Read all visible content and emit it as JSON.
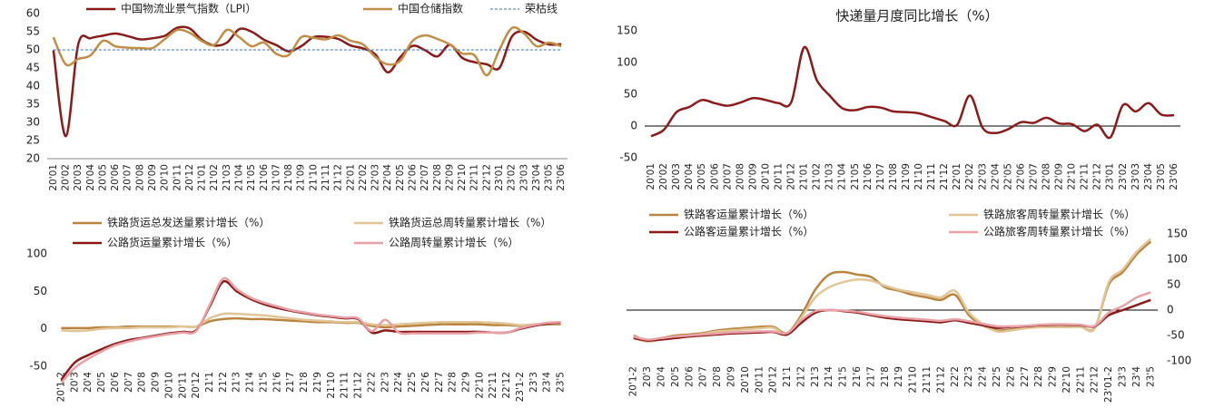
{
  "chart_data": [
    {
      "type": "line",
      "categories": [
        "20'01",
        "20'02",
        "20'03",
        "20'04",
        "20'05",
        "20'06",
        "20'07",
        "20'08",
        "20'09",
        "20'10",
        "20'11",
        "20'12",
        "21'01",
        "21'02",
        "21'03",
        "21'04",
        "21'05",
        "21'06",
        "21'07",
        "21'08",
        "21'09",
        "21'10",
        "21'11",
        "21'12",
        "22'01",
        "22'02",
        "22'03",
        "22'04",
        "22'05",
        "22'06",
        "22'07",
        "22'08",
        "22'09",
        "22'10",
        "22'11",
        "22'12",
        "23'01",
        "23'02",
        "23'03",
        "23'04",
        "23'05",
        "23'06"
      ],
      "ylim": [
        20,
        60
      ],
      "yticks": [
        20,
        25,
        30,
        35,
        40,
        45,
        50,
        55,
        60
      ],
      "series": [
        {
          "name": "中国物流业景气指数（LPI）",
          "color": "#8b1a1a",
          "values": [
            49.9,
            26.2,
            51.5,
            53.2,
            53.9,
            54.5,
            53.8,
            52.9,
            53.2,
            53.9,
            56.1,
            55.9,
            52.7,
            51.2,
            52.0,
            55.7,
            55.0,
            52.8,
            51.3,
            49.6,
            51.0,
            53.5,
            53.6,
            53.0,
            51.2,
            50.4,
            48.7,
            43.8,
            48.0,
            51.1,
            49.9,
            48.2,
            51.4,
            47.8,
            46.6,
            46.0,
            45.0,
            53.6,
            55.0,
            52.8,
            51.5,
            51.6
          ]
        },
        {
          "name": "中国仓储指数",
          "color": "#c08e45",
          "values": [
            53.5,
            46.0,
            47.5,
            48.5,
            52.5,
            51.0,
            50.6,
            50.5,
            50.5,
            53.0,
            55.5,
            54.7,
            52.4,
            51.4,
            55.5,
            53.5,
            51.0,
            52.0,
            48.9,
            48.6,
            53.5,
            53.3,
            52.9,
            54.0,
            52.5,
            51.5,
            48.0,
            46.0,
            47.0,
            52.5,
            54.0,
            53.0,
            51.5,
            49.0,
            48.5,
            43.0,
            50.0,
            56.0,
            54.5,
            51.0,
            52.0,
            51.0
          ]
        },
        {
          "name": "荣枯线",
          "color": "#3a6fb5",
          "line_style": "dashed",
          "values": [
            50,
            50,
            50,
            50,
            50,
            50,
            50,
            50,
            50,
            50,
            50,
            50,
            50,
            50,
            50,
            50,
            50,
            50,
            50,
            50,
            50,
            50,
            50,
            50,
            50,
            50,
            50,
            50,
            50,
            50,
            50,
            50,
            50,
            50,
            50,
            50,
            50,
            50,
            50,
            50,
            50,
            50
          ]
        }
      ]
    },
    {
      "type": "line",
      "title": "快递量月度同比增长（%）",
      "categories": [
        "20'01",
        "20'02",
        "20'03",
        "20'04",
        "20'05",
        "20'06",
        "20'07",
        "20'08",
        "20'09",
        "20'10",
        "20'11",
        "20'12",
        "21'01",
        "21'02",
        "21'03",
        "21'04",
        "21'05",
        "21'06",
        "21'07",
        "21'08",
        "21'09",
        "21'10",
        "21'11",
        "21'12",
        "22'01",
        "22'02",
        "22'03",
        "22'04",
        "22'05",
        "22'06",
        "22'07",
        "22'08",
        "22'09",
        "22'10",
        "22'11",
        "22'12",
        "23'01",
        "23'02",
        "23'03",
        "23'04",
        "23'05",
        "23'06"
      ],
      "ylim": [
        -50,
        150
      ],
      "yticks": [
        -50,
        0,
        50,
        100,
        150
      ],
      "color": "#8b1a1a",
      "values": [
        -16,
        -6,
        22,
        30,
        41,
        36,
        32,
        37,
        44,
        41,
        36,
        38,
        124,
        72,
        48,
        28,
        25,
        30,
        29,
        23,
        22,
        20,
        14,
        8,
        2,
        48,
        -3,
        -11,
        -5,
        6,
        5,
        13,
        4,
        3,
        -8,
        2,
        -18,
        33,
        23,
        36,
        18,
        17
      ]
    },
    {
      "type": "line",
      "categories": [
        "20'1-2",
        "20'3",
        "20'4",
        "20'5",
        "20'6",
        "20'7",
        "20'8",
        "20'9",
        "20'10",
        "20'11",
        "20'12",
        "21'1",
        "21'2",
        "21'3",
        "21'4",
        "21'5",
        "21'6",
        "21'7",
        "21'8",
        "21'9",
        "21'10",
        "21'11",
        "21'12",
        "22'2",
        "22'3",
        "22'4",
        "22'5",
        "22'6",
        "22'7",
        "22'8",
        "22'9",
        "22'10",
        "22'11",
        "22'12",
        "23'1-2",
        "23'3",
        "23'4",
        "23'5"
      ],
      "ylim": [
        -50,
        100
      ],
      "yticks": [
        -50,
        0,
        50,
        100
      ],
      "series": [
        {
          "name": "铁路货运总发送量累计增长（%）",
          "color": "#b9853e",
          "values": [
            1,
            1,
            1,
            2,
            2,
            3,
            3,
            3,
            3,
            3,
            3,
            10,
            13,
            14,
            13,
            13,
            12,
            11,
            10,
            9,
            9,
            8,
            8,
            4,
            2,
            3,
            4,
            5,
            6,
            6,
            6,
            6,
            5,
            5,
            4,
            5,
            6,
            6
          ]
        },
        {
          "name": "铁路货运总周转量累计增长（%）",
          "color": "#e2c596",
          "values": [
            -2,
            -3,
            -2,
            0,
            1,
            1,
            2,
            2,
            2,
            3,
            3,
            14,
            20,
            20,
            19,
            18,
            16,
            14,
            12,
            11,
            10,
            9,
            9,
            6,
            5,
            6,
            7,
            8,
            9,
            9,
            9,
            9,
            8,
            7,
            5,
            6,
            7,
            7
          ]
        },
        {
          "name": "公路货运量累计增长（%）",
          "color": "#8b1a1a",
          "values": [
            -68,
            -45,
            -35,
            -27,
            -20,
            -15,
            -12,
            -9,
            -6,
            -4,
            -2,
            30,
            63,
            50,
            40,
            33,
            28,
            24,
            21,
            18,
            16,
            14,
            13,
            -5,
            -2,
            -4,
            -4,
            -4,
            -4,
            -4,
            -4,
            -4,
            -5,
            -5,
            0,
            4,
            7,
            8
          ]
        },
        {
          "name": "公路周转量累计增长（%）",
          "color": "#e8a1a6",
          "values": [
            -72,
            -52,
            -40,
            -30,
            -22,
            -17,
            -13,
            -10,
            -7,
            -5,
            -3,
            32,
            67,
            53,
            42,
            35,
            30,
            25,
            22,
            19,
            17,
            15,
            14,
            -3,
            12,
            -5,
            -6,
            -6,
            -6,
            -6,
            -6,
            -5,
            -5,
            -5,
            1,
            5,
            8,
            9
          ]
        }
      ]
    },
    {
      "type": "line",
      "categories": [
        "20'1-2",
        "20'3",
        "20'4",
        "20'5",
        "20'6",
        "20'7",
        "20'8",
        "20'9",
        "20'10",
        "20'11",
        "20'12",
        "21'1",
        "21'2",
        "21'3",
        "21'4",
        "21'5",
        "21'6",
        "21'7",
        "21'8",
        "21'9",
        "21'10",
        "21'11",
        "21'12",
        "22'2",
        "22'3",
        "22'4",
        "22'5",
        "22'6",
        "22'7",
        "22'8",
        "22'9",
        "22'10",
        "22'11",
        "22'12",
        "23'01-2",
        "23'3",
        "23'4",
        "23'5"
      ],
      "ylim": [
        -100,
        150
      ],
      "yticks": [
        -100,
        -50,
        0,
        50,
        100,
        150
      ],
      "y_axis_side": "right",
      "series": [
        {
          "name": "铁路客运量累计增长（%）",
          "color": "#b9853e",
          "values": [
            -50,
            -60,
            -55,
            -50,
            -48,
            -45,
            -40,
            -37,
            -35,
            -33,
            -33,
            -45,
            -10,
            40,
            70,
            75,
            70,
            65,
            45,
            38,
            30,
            25,
            20,
            30,
            -10,
            -30,
            -40,
            -38,
            -35,
            -33,
            -33,
            -33,
            -33,
            -35,
            50,
            75,
            110,
            135
          ]
        },
        {
          "name": "铁路旅客周转量累计增长（%）",
          "color": "#e2c596",
          "values": [
            -55,
            -62,
            -57,
            -52,
            -50,
            -47,
            -42,
            -40,
            -38,
            -36,
            -35,
            -48,
            -15,
            25,
            45,
            55,
            60,
            58,
            48,
            40,
            35,
            30,
            25,
            38,
            -5,
            -28,
            -42,
            -40,
            -36,
            -34,
            -33,
            -33,
            -33,
            -36,
            55,
            80,
            115,
            140
          ]
        },
        {
          "name": "公路客运量累计增长（%）",
          "color": "#8b1a1a",
          "values": [
            -55,
            -60,
            -58,
            -55,
            -52,
            -50,
            -48,
            -46,
            -45,
            -44,
            -43,
            -48,
            -25,
            -5,
            0,
            -2,
            -5,
            -10,
            -15,
            -18,
            -20,
            -22,
            -24,
            -20,
            -25,
            -30,
            -35,
            -33,
            -32,
            -30,
            -29,
            -29,
            -30,
            -32,
            -10,
            0,
            10,
            20
          ]
        },
        {
          "name": "公路旅客周转量累计增长（%）",
          "color": "#e8a1a6",
          "values": [
            -52,
            -58,
            -55,
            -52,
            -50,
            -48,
            -46,
            -44,
            -43,
            -42,
            -42,
            -45,
            -20,
            -2,
            0,
            -1,
            -3,
            -8,
            -12,
            -15,
            -17,
            -19,
            -21,
            -18,
            -22,
            -27,
            -32,
            -32,
            -31,
            -29,
            -28,
            -28,
            -29,
            -31,
            -5,
            8,
            25,
            35
          ]
        }
      ]
    }
  ]
}
